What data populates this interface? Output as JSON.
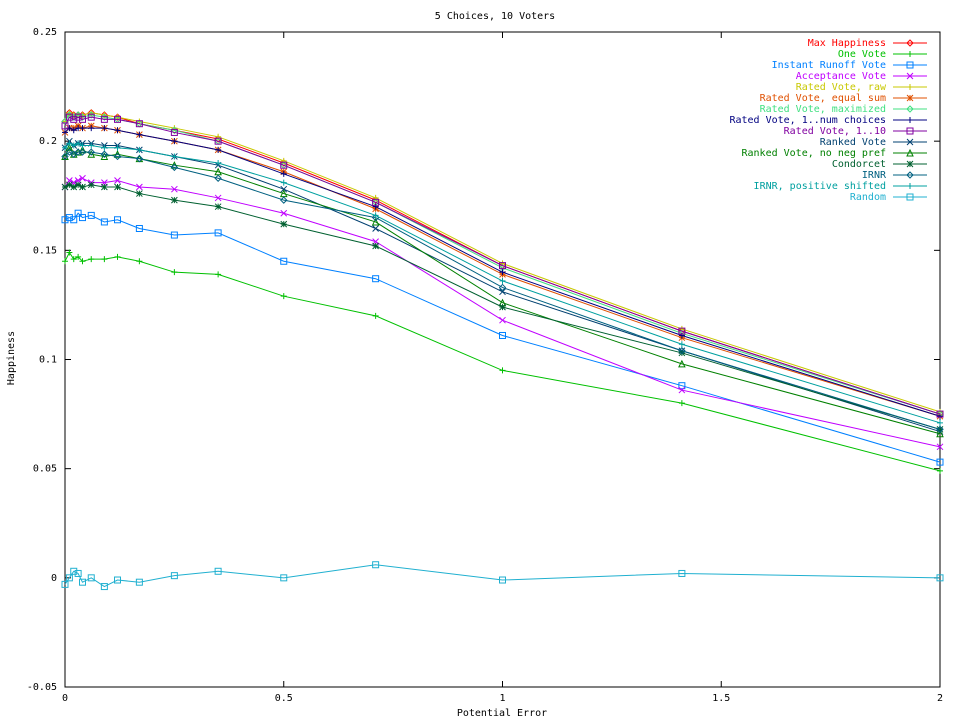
{
  "chart_data": {
    "type": "line",
    "title": "5 Choices, 10 Voters",
    "xlabel": "Potential Error",
    "ylabel": "Happiness",
    "xlim": [
      0,
      2
    ],
    "ylim": [
      -0.05,
      0.25
    ],
    "xticks": [
      0,
      0.5,
      1,
      1.5,
      2
    ],
    "xtick_labels": [
      "0",
      "0.5",
      "1",
      "1.5",
      "2"
    ],
    "yticks": [
      -0.05,
      0,
      0.05,
      0.1,
      0.15,
      0.2,
      0.25
    ],
    "ytick_labels": [
      "-0.05",
      "0",
      "0.05",
      "0.1",
      "0.15",
      "0.2",
      "0.25"
    ],
    "grid": false,
    "legend_position": "top-right",
    "x": [
      0,
      0.01,
      0.02,
      0.03,
      0.04,
      0.06,
      0.09,
      0.12,
      0.17,
      0.25,
      0.35,
      0.5,
      0.71,
      1,
      1.41,
      2
    ],
    "series": [
      {
        "name": "Max Happiness",
        "color": "#ff0000",
        "marker": "diamond",
        "values": [
          0.209,
          0.213,
          0.212,
          0.212,
          0.212,
          0.213,
          0.212,
          0.211,
          0.208,
          0.205,
          0.201,
          0.19,
          0.173,
          0.143,
          0.113,
          0.075
        ]
      },
      {
        "name": "One Vote",
        "color": "#00c000",
        "marker": "plus",
        "values": [
          0.145,
          0.149,
          0.146,
          0.147,
          0.145,
          0.146,
          0.146,
          0.147,
          0.145,
          0.14,
          0.139,
          0.129,
          0.12,
          0.095,
          0.08,
          0.049
        ]
      },
      {
        "name": "Instant Runoff Vote",
        "color": "#0080ff",
        "marker": "square",
        "values": [
          0.164,
          0.165,
          0.164,
          0.167,
          0.165,
          0.166,
          0.163,
          0.164,
          0.16,
          0.157,
          0.158,
          0.145,
          0.137,
          0.111,
          0.088,
          0.053
        ]
      },
      {
        "name": "Acceptance Vote",
        "color": "#c000ff",
        "marker": "x",
        "values": [
          0.179,
          0.182,
          0.181,
          0.182,
          0.183,
          0.181,
          0.181,
          0.182,
          0.179,
          0.178,
          0.174,
          0.167,
          0.154,
          0.118,
          0.086,
          0.06
        ]
      },
      {
        "name": "Rated Vote, raw",
        "color": "#c8c800",
        "marker": "plus",
        "values": [
          0.209,
          0.213,
          0.212,
          0.212,
          0.212,
          0.213,
          0.212,
          0.211,
          0.209,
          0.206,
          0.202,
          0.191,
          0.174,
          0.144,
          0.114,
          0.076
        ]
      },
      {
        "name": "Rated Vote, equal sum",
        "color": "#e05000",
        "marker": "star",
        "values": [
          0.204,
          0.206,
          0.206,
          0.207,
          0.206,
          0.207,
          0.206,
          0.205,
          0.203,
          0.2,
          0.196,
          0.186,
          0.169,
          0.139,
          0.11,
          0.074
        ]
      },
      {
        "name": "Rated Vote, maximized",
        "color": "#40e080",
        "marker": "diamond",
        "values": [
          0.209,
          0.212,
          0.211,
          0.212,
          0.211,
          0.212,
          0.211,
          0.21,
          0.208,
          0.205,
          0.2,
          0.189,
          0.172,
          0.142,
          0.112,
          0.075
        ]
      },
      {
        "name": "Rated Vote, 1..num choices",
        "color": "#000080",
        "marker": "plus",
        "values": [
          0.204,
          0.206,
          0.205,
          0.206,
          0.206,
          0.206,
          0.206,
          0.205,
          0.203,
          0.2,
          0.196,
          0.185,
          0.17,
          0.14,
          0.111,
          0.074
        ]
      },
      {
        "name": "Rated Vote, 1..10",
        "color": "#8000a0",
        "marker": "square",
        "values": [
          0.207,
          0.211,
          0.21,
          0.211,
          0.21,
          0.211,
          0.21,
          0.21,
          0.208,
          0.204,
          0.2,
          0.189,
          0.172,
          0.143,
          0.113,
          0.075
        ]
      },
      {
        "name": "Ranked Vote",
        "color": "#004070",
        "marker": "x",
        "values": [
          0.197,
          0.2,
          0.198,
          0.199,
          0.199,
          0.199,
          0.198,
          0.198,
          0.196,
          0.193,
          0.189,
          0.178,
          0.16,
          0.131,
          0.104,
          0.067
        ]
      },
      {
        "name": "Ranked Vote, no neg pref",
        "color": "#008000",
        "marker": "triangle",
        "values": [
          0.193,
          0.197,
          0.194,
          0.195,
          0.196,
          0.194,
          0.193,
          0.194,
          0.192,
          0.189,
          0.186,
          0.176,
          0.163,
          0.126,
          0.098,
          0.066
        ]
      },
      {
        "name": "Condorcet",
        "color": "#006030",
        "marker": "star",
        "values": [
          0.179,
          0.18,
          0.179,
          0.18,
          0.179,
          0.18,
          0.179,
          0.179,
          0.176,
          0.173,
          0.17,
          0.162,
          0.152,
          0.124,
          0.103,
          0.068
        ]
      },
      {
        "name": "IRNR",
        "color": "#006080",
        "marker": "diamond",
        "values": [
          0.193,
          0.195,
          0.194,
          0.195,
          0.195,
          0.195,
          0.194,
          0.193,
          0.192,
          0.188,
          0.183,
          0.173,
          0.165,
          0.133,
          0.104,
          0.068
        ]
      },
      {
        "name": "IRNR, positive shifted",
        "color": "#00a0a0",
        "marker": "plus",
        "values": [
          0.197,
          0.199,
          0.198,
          0.199,
          0.198,
          0.198,
          0.197,
          0.197,
          0.196,
          0.193,
          0.19,
          0.181,
          0.166,
          0.136,
          0.107,
          0.071
        ]
      },
      {
        "name": "Random",
        "color": "#20b0d0",
        "marker": "square",
        "values": [
          -0.003,
          0.0,
          0.003,
          0.002,
          -0.002,
          0.0,
          -0.004,
          -0.001,
          -0.002,
          0.001,
          0.003,
          0.0,
          0.006,
          -0.001,
          0.002,
          0.0
        ]
      }
    ]
  }
}
